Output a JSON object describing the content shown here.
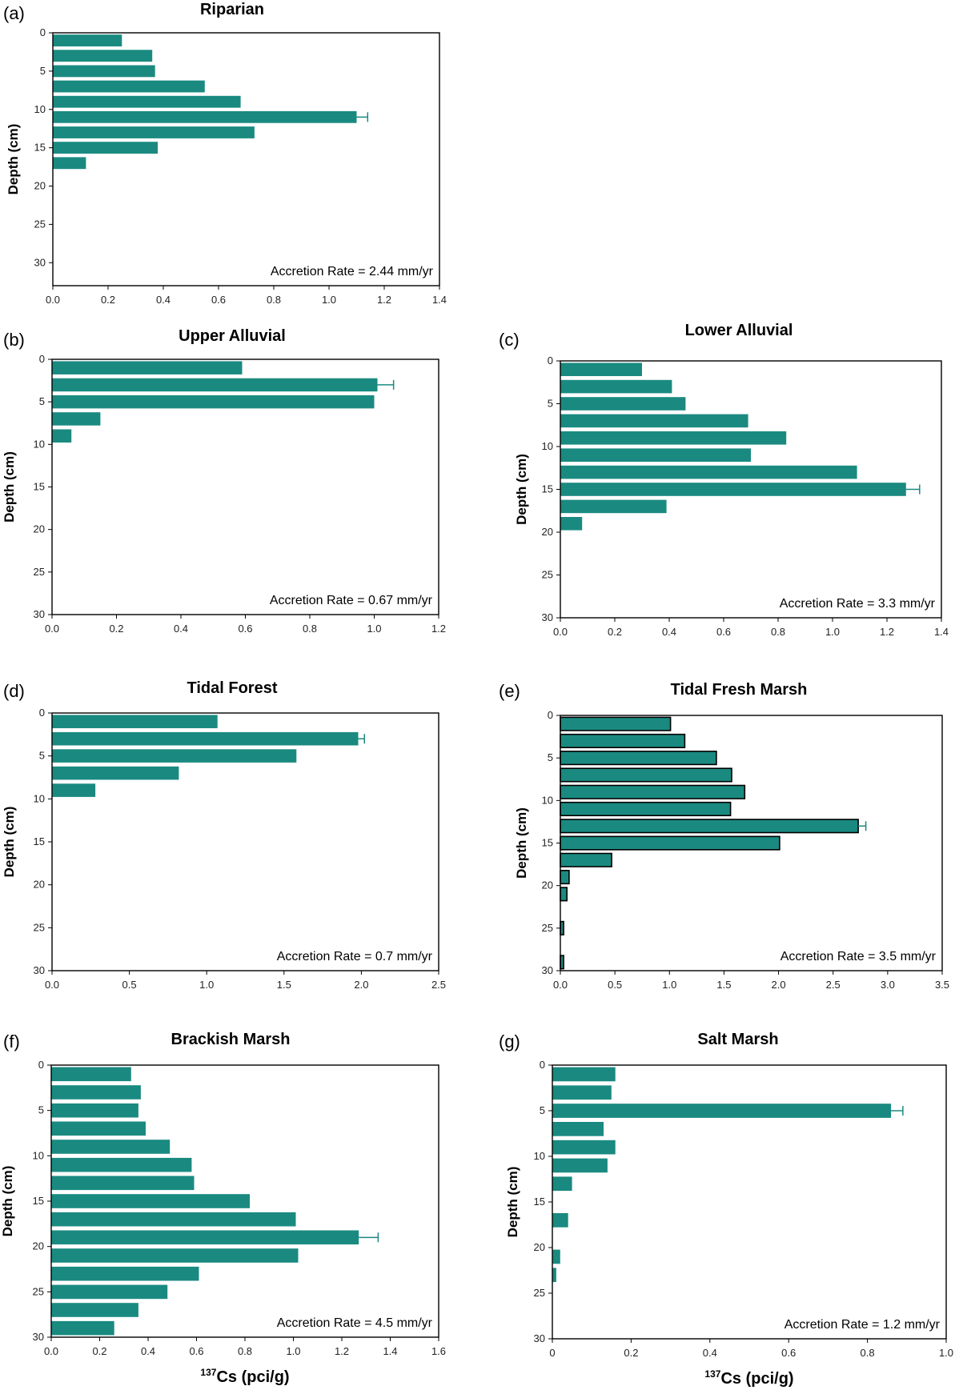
{
  "bar_color": "#1a8a80",
  "chart_data": [
    {
      "panel": "(a)",
      "type": "bar",
      "orientation": "horizontal",
      "title": "Riparian",
      "ylabel": "Depth (cm)",
      "xlabel": "",
      "annotation": "Accretion Rate = 2.44 mm/yr",
      "xlim": [
        0,
        1.4
      ],
      "xticks": [
        0.0,
        0.2,
        0.4,
        0.6,
        0.8,
        1.0,
        1.2,
        1.4
      ],
      "xtick_labels": [
        "0.0",
        "0.2",
        "0.4",
        "0.6",
        "0.8",
        "1.0",
        "1.2",
        "1.4"
      ],
      "ylim": [
        0,
        33
      ],
      "yticks": [
        0,
        5,
        10,
        15,
        20,
        25,
        30
      ],
      "bar_outline": false,
      "depths": [
        1,
        3,
        5,
        7,
        9,
        11,
        13,
        15,
        17
      ],
      "values": [
        0.25,
        0.36,
        0.37,
        0.55,
        0.68,
        1.1,
        0.73,
        0.38,
        0.12
      ],
      "error_bar": {
        "depth": 11,
        "value": 1.1,
        "err": 0.04
      }
    },
    {
      "panel": "(b)",
      "type": "bar",
      "orientation": "horizontal",
      "title": "Upper  Alluvial",
      "ylabel": "Depth (cm)",
      "xlabel": "",
      "annotation": "Accretion Rate = 0.67 mm/yr",
      "xlim": [
        0,
        1.2
      ],
      "xticks": [
        0.0,
        0.2,
        0.4,
        0.6,
        0.8,
        1.0,
        1.2
      ],
      "xtick_labels": [
        "0.0",
        "0.2",
        "0.4",
        "0.6",
        "0.8",
        "1.0",
        "1.2"
      ],
      "ylim": [
        0,
        30
      ],
      "yticks": [
        0,
        5,
        10,
        15,
        20,
        25,
        30
      ],
      "bar_outline": false,
      "depths": [
        1,
        3,
        5,
        7,
        9
      ],
      "values": [
        0.59,
        1.01,
        1.0,
        0.15,
        0.06
      ],
      "error_bar": {
        "depth": 3,
        "value": 1.01,
        "err": 0.05
      }
    },
    {
      "panel": "(c)",
      "type": "bar",
      "orientation": "horizontal",
      "title": "Lower Alluvial",
      "ylabel": "Depth (cm)",
      "xlabel": "",
      "annotation": "Accretion Rate = 3.3 mm/yr",
      "xlim": [
        0,
        1.4
      ],
      "xticks": [
        0.0,
        0.2,
        0.4,
        0.6,
        0.8,
        1.0,
        1.2,
        1.4
      ],
      "xtick_labels": [
        "0.0",
        "0.2",
        "0.4",
        "0.6",
        "0.8",
        "1.0",
        "1.2",
        "1.4"
      ],
      "ylim": [
        0,
        30
      ],
      "yticks": [
        0,
        5,
        10,
        15,
        20,
        25,
        30
      ],
      "bar_outline": false,
      "depths": [
        1,
        3,
        5,
        7,
        9,
        11,
        13,
        15,
        17,
        19
      ],
      "values": [
        0.3,
        0.41,
        0.46,
        0.69,
        0.83,
        0.7,
        1.09,
        1.27,
        0.39,
        0.08
      ],
      "error_bar": {
        "depth": 15,
        "value": 1.27,
        "err": 0.05
      }
    },
    {
      "panel": "(d)",
      "type": "bar",
      "orientation": "horizontal",
      "title": "Tidal Forest",
      "ylabel": "Depth (cm)",
      "xlabel": "",
      "annotation": "Accretion Rate = 0.7 mm/yr",
      "xlim": [
        0,
        2.5
      ],
      "xticks": [
        0.0,
        0.5,
        1.0,
        1.5,
        2.0,
        2.5
      ],
      "xtick_labels": [
        "0.0",
        "0.5",
        "1.0",
        "1.5",
        "2.0",
        "2.5"
      ],
      "ylim": [
        0,
        30
      ],
      "yticks": [
        0,
        5,
        10,
        15,
        20,
        25,
        30
      ],
      "bar_outline": false,
      "depths": [
        1,
        3,
        5,
        7,
        9
      ],
      "values": [
        1.07,
        1.98,
        1.58,
        0.82,
        0.28
      ],
      "error_bar": {
        "depth": 3,
        "value": 1.98,
        "err": 0.04
      }
    },
    {
      "panel": "(e)",
      "type": "bar",
      "orientation": "horizontal",
      "title": "Tidal Fresh Marsh",
      "ylabel": "Depth (cm)",
      "xlabel": "",
      "annotation": "Accretion Rate = 3.5 mm/yr",
      "xlim": [
        0,
        3.5
      ],
      "xticks": [
        0.0,
        0.5,
        1.0,
        1.5,
        2.0,
        2.5,
        3.0,
        3.5
      ],
      "xtick_labels": [
        "0.0",
        "0.5",
        "1.0",
        "1.5",
        "2.0",
        "2.5",
        "3.0",
        "3.5"
      ],
      "ylim": [
        0,
        30
      ],
      "yticks": [
        0,
        5,
        10,
        15,
        20,
        25,
        30
      ],
      "bar_outline": true,
      "depths": [
        1,
        3,
        5,
        7,
        9,
        11,
        13,
        15,
        17,
        19,
        21,
        25,
        29
      ],
      "values": [
        1.01,
        1.14,
        1.43,
        1.57,
        1.69,
        1.56,
        2.73,
        2.01,
        0.47,
        0.08,
        0.06,
        0.03,
        0.03
      ],
      "error_bar": {
        "depth": 13,
        "value": 2.73,
        "err": 0.07
      }
    },
    {
      "panel": "(f)",
      "type": "bar",
      "orientation": "horizontal",
      "title": "Brackish Marsh",
      "ylabel": "Depth (cm)",
      "xlabel": "137Cs (pci/g)",
      "xlabel_sup": "137",
      "xlabel_main": "Cs (pci/g)",
      "annotation": "Accretion Rate = 4.5 mm/yr",
      "xlim": [
        0,
        1.6
      ],
      "xticks": [
        0.0,
        0.2,
        0.4,
        0.6,
        0.8,
        1.0,
        1.2,
        1.4,
        1.6
      ],
      "xtick_labels": [
        "0.0",
        "0.2",
        "0.4",
        "0.6",
        "0.8",
        "1.0",
        "1.2",
        "1.4",
        "1.6"
      ],
      "ylim": [
        0,
        30
      ],
      "yticks": [
        0,
        5,
        10,
        15,
        20,
        25,
        30
      ],
      "bar_outline": false,
      "depths": [
        1,
        3,
        5,
        7,
        9,
        11,
        13,
        15,
        17,
        19,
        21,
        23,
        25,
        27,
        29
      ],
      "values": [
        0.33,
        0.37,
        0.36,
        0.39,
        0.49,
        0.58,
        0.59,
        0.82,
        1.01,
        1.27,
        1.02,
        0.61,
        0.48,
        0.36,
        0.26
      ],
      "error_bar": {
        "depth": 19,
        "value": 1.27,
        "err": 0.08
      }
    },
    {
      "panel": "(g)",
      "type": "bar",
      "orientation": "horizontal",
      "title": "Salt Marsh",
      "ylabel": "Depth (cm)",
      "xlabel": "137Cs (pci/g)",
      "xlabel_sup": "137",
      "xlabel_main": "Cs (pci/g)",
      "annotation": "Accretion Rate = 1.2 mm/yr",
      "xlim": [
        0,
        1.0
      ],
      "xticks": [
        0,
        0.2,
        0.4,
        0.6,
        0.8,
        1.0
      ],
      "xtick_labels": [
        "0",
        "0.2",
        "0.4",
        "0.6",
        "0.8",
        "1.0"
      ],
      "ylim": [
        0,
        30
      ],
      "yticks": [
        0,
        5,
        10,
        15,
        20,
        25,
        30
      ],
      "bar_outline": false,
      "depths": [
        1,
        3,
        5,
        7,
        9,
        11,
        13,
        17,
        21,
        23
      ],
      "values": [
        0.16,
        0.15,
        0.86,
        0.13,
        0.16,
        0.14,
        0.05,
        0.04,
        0.02,
        0.01
      ],
      "error_bar": {
        "depth": 5,
        "value": 0.86,
        "err": 0.03
      }
    }
  ]
}
